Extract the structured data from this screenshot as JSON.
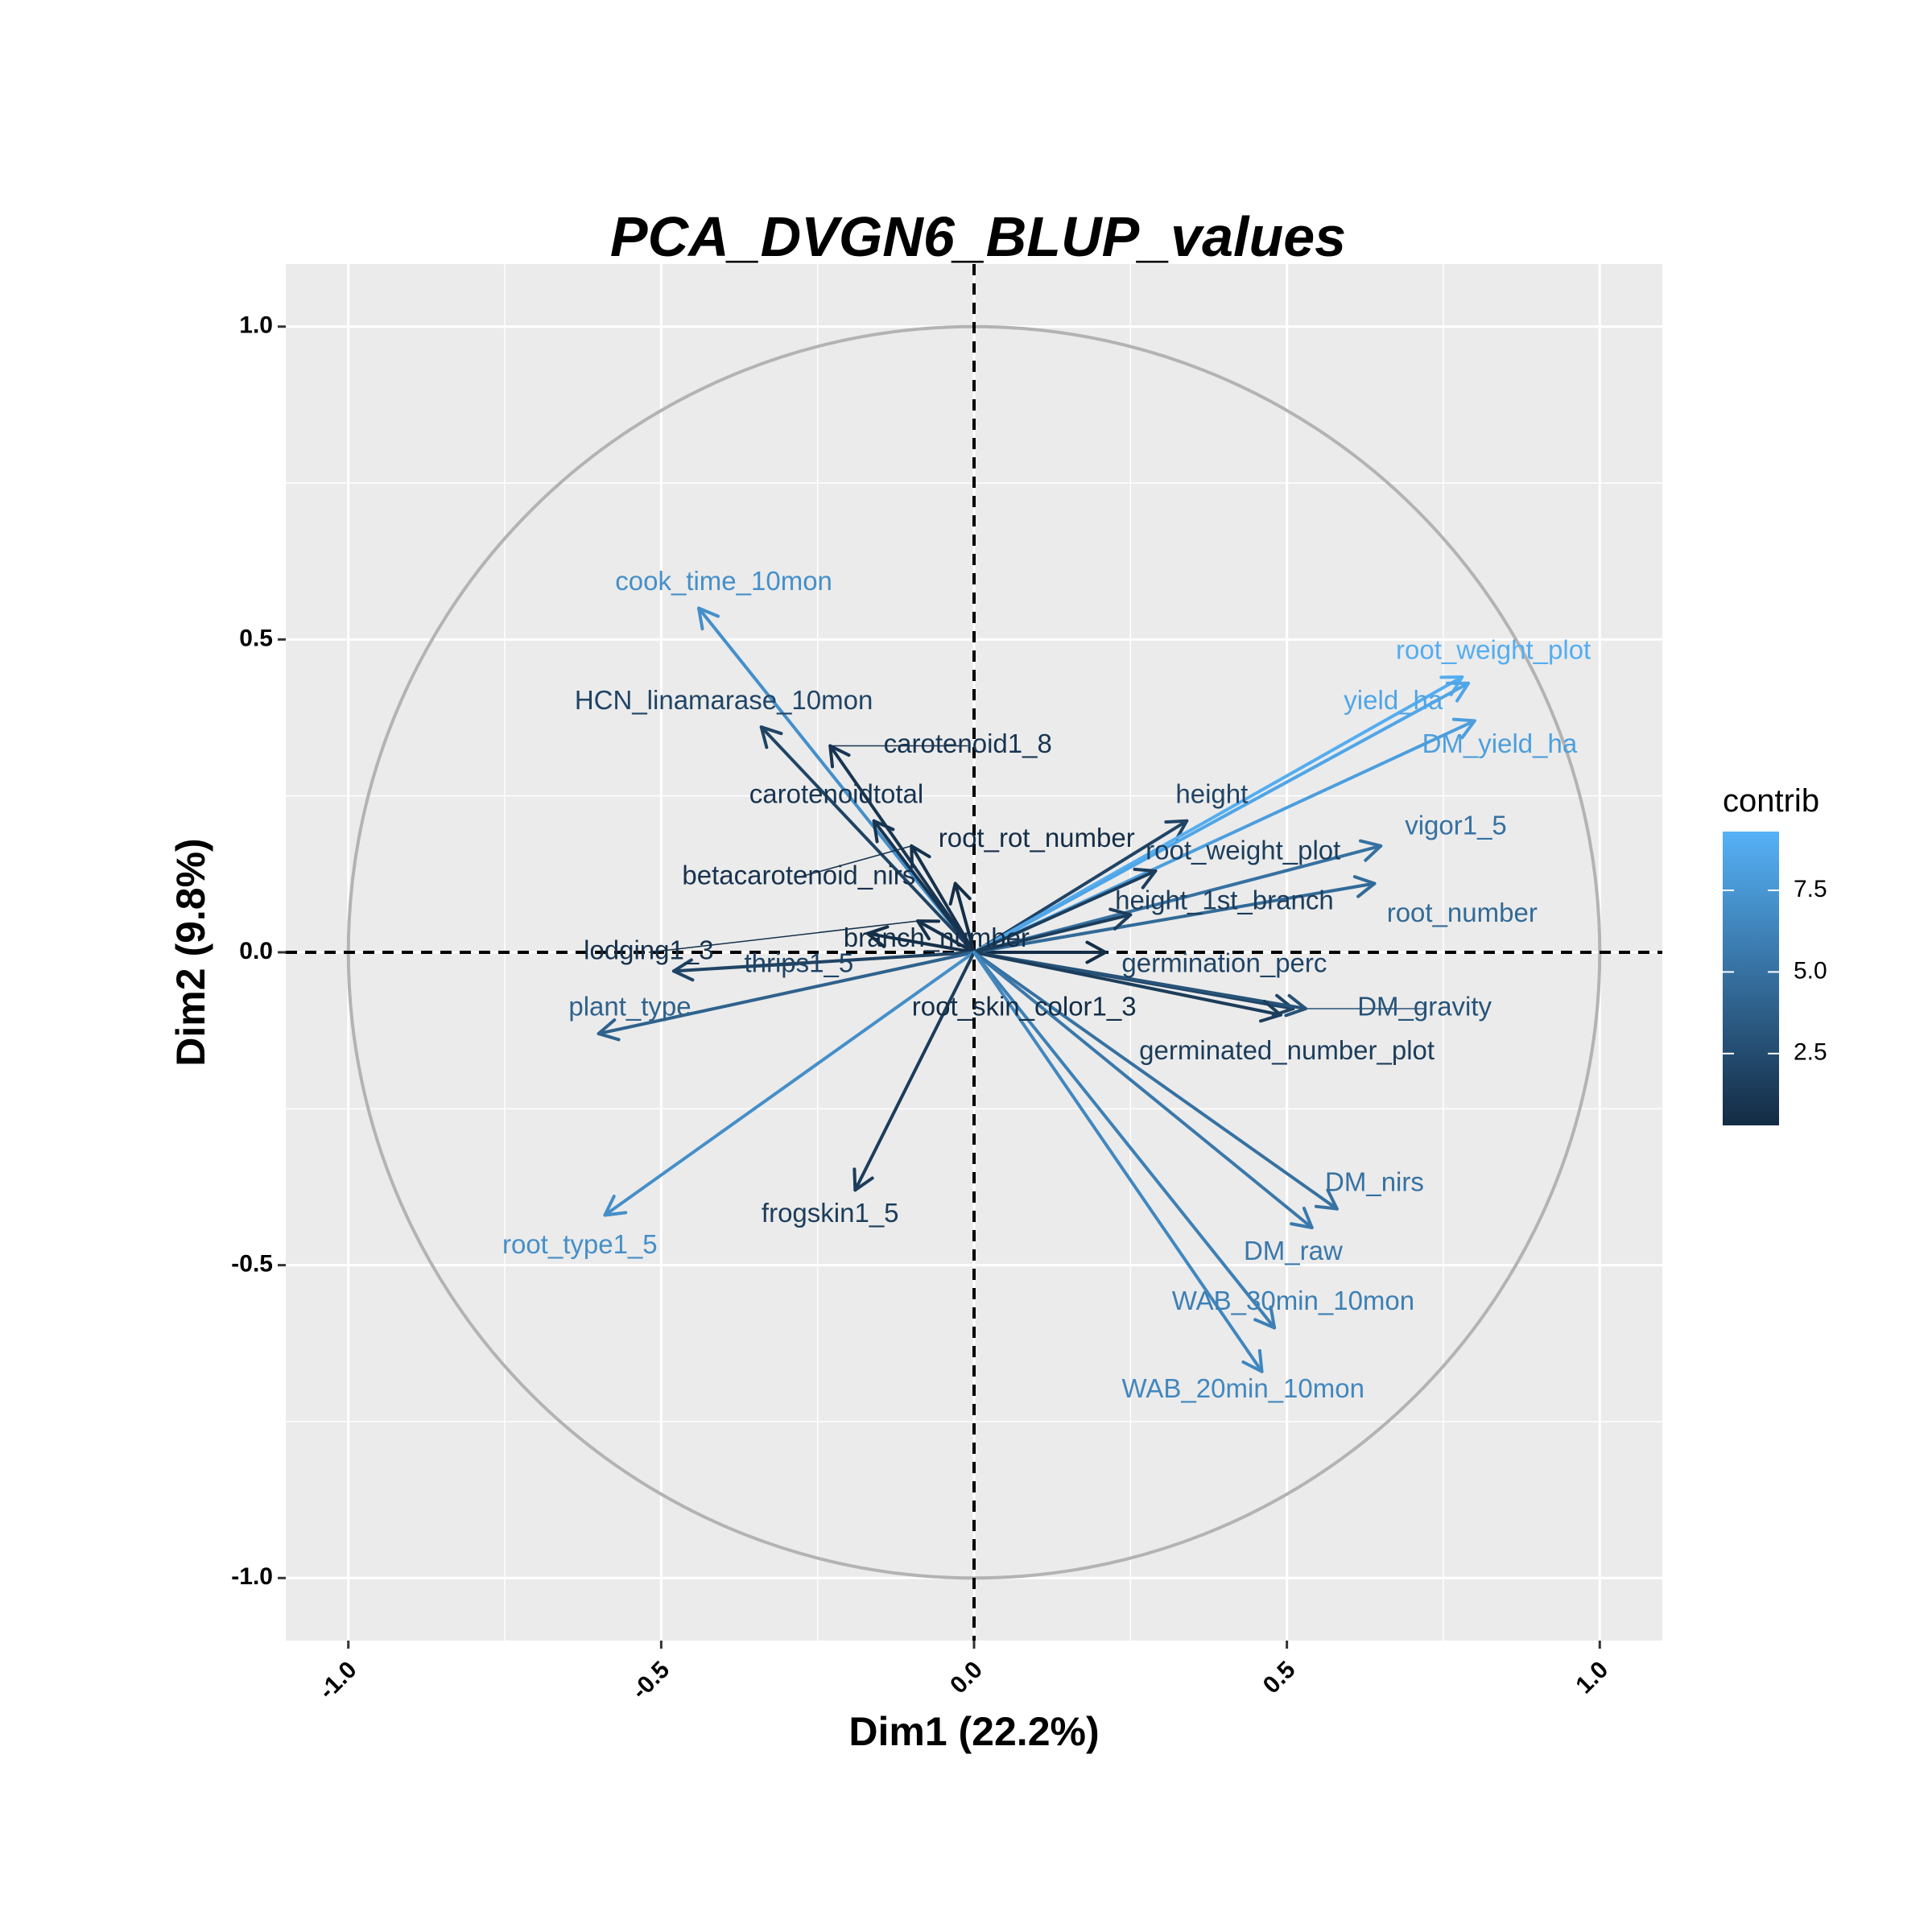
{
  "chart_data": {
    "type": "scatter",
    "subtype": "pca-variable-correlation-circle",
    "title": "PCA_DVGN6_BLUP_values",
    "xlabel": "Dim1 (22.2%)",
    "ylabel": "Dim2 (9.8%)",
    "xlim": [
      -1.1,
      1.1
    ],
    "ylim": [
      -1.1,
      1.1
    ],
    "xticks": [
      -1.0,
      -0.5,
      0.0,
      0.5,
      1.0
    ],
    "yticks": [
      -1.0,
      -0.5,
      0.0,
      0.5,
      1.0
    ],
    "xtick_labels": [
      "-1.0",
      "-0.5",
      "0.0",
      "0.5",
      "1.0"
    ],
    "ytick_labels": [
      "-1.0",
      "-0.5",
      "0.0",
      "0.5",
      "1.0"
    ],
    "grid": true,
    "unit_circle": true,
    "reference_lines": [
      "x=0",
      "y=0"
    ],
    "legend": {
      "title": "contrib",
      "placement": "right",
      "min": 0.3,
      "max": 9.3,
      "breaks": [
        2.5,
        5.0,
        7.5
      ],
      "break_labels": [
        "2.5",
        "5.0",
        "7.5"
      ],
      "color_low": "#132B43",
      "color_high": "#56B1F7"
    },
    "variables": [
      {
        "name": "cook_time_10mon",
        "x": -0.44,
        "y": 0.55,
        "contrib": 7.0,
        "label_x": -0.4,
        "label_y": 0.59
      },
      {
        "name": "HCN_linamarase_10mon",
        "x": -0.34,
        "y": 0.36,
        "contrib": 2.0,
        "label_x": -0.4,
        "label_y": 0.4
      },
      {
        "name": "carotenoid1_8",
        "x": -0.23,
        "y": 0.33,
        "contrib": 1.0,
        "label_x": -0.01,
        "label_y": 0.33
      },
      {
        "name": "carotenoidtotal",
        "x": -0.16,
        "y": 0.21,
        "contrib": 1.0,
        "label_x": -0.22,
        "label_y": 0.25
      },
      {
        "name": "betacarotenoid_nirs",
        "x": -0.1,
        "y": 0.17,
        "contrib": 0.8,
        "label_x": -0.28,
        "label_y": 0.12
      },
      {
        "name": "root_rot_number",
        "x": -0.03,
        "y": 0.11,
        "contrib": 0.5,
        "label_x": 0.1,
        "label_y": 0.18
      },
      {
        "name": "branch_number",
        "x": -0.17,
        "y": 0.03,
        "contrib": 0.6,
        "label_x": -0.06,
        "label_y": 0.02
      },
      {
        "name": "lodging1_3",
        "x": -0.09,
        "y": 0.05,
        "contrib": 0.7,
        "label_x": -0.52,
        "label_y": 0.0
      },
      {
        "name": "thrips1_5",
        "x": -0.48,
        "y": -0.03,
        "contrib": 2.0,
        "label_x": -0.28,
        "label_y": -0.02
      },
      {
        "name": "plant_type",
        "x": -0.6,
        "y": -0.13,
        "contrib": 4.0,
        "label_x": -0.55,
        "label_y": -0.09
      },
      {
        "name": "root_type1_5",
        "x": -0.59,
        "y": -0.42,
        "contrib": 7.0,
        "label_x": -0.63,
        "label_y": -0.47
      },
      {
        "name": "frogskin1_5",
        "x": -0.19,
        "y": -0.38,
        "contrib": 1.5,
        "label_x": -0.23,
        "label_y": -0.42
      },
      {
        "name": "root_skin_color1_3",
        "x": 0.21,
        "y": 0.0,
        "contrib": 0.5,
        "label_x": 0.08,
        "label_y": -0.09
      },
      {
        "name": "height",
        "x": 0.34,
        "y": 0.21,
        "contrib": 2.0,
        "label_x": 0.38,
        "label_y": 0.25
      },
      {
        "name": "root_weight_plot",
        "x": 0.78,
        "y": 0.44,
        "contrib": 9.0,
        "label_x": 0.83,
        "label_y": 0.48
      },
      {
        "name": "yield_ha",
        "x": 0.79,
        "y": 0.43,
        "contrib": 8.5,
        "label_x": 0.67,
        "label_y": 0.4
      },
      {
        "name": "DM_yield_ha",
        "x": 0.8,
        "y": 0.37,
        "contrib": 8.0,
        "label_x": 0.84,
        "label_y": 0.33
      },
      {
        "name": "vigor1_5",
        "x": 0.65,
        "y": 0.17,
        "contrib": 5.0,
        "label_x": 0.77,
        "label_y": 0.2
      },
      {
        "name": "root_number",
        "x": 0.64,
        "y": 0.11,
        "contrib": 4.5,
        "label_x": 0.78,
        "label_y": 0.06
      },
      {
        "name": "root_weight_plot",
        "x": 0.29,
        "y": 0.13,
        "contrib": 1.5,
        "label_x": 0.43,
        "label_y": 0.16
      },
      {
        "name": "height_1st_branch",
        "x": 0.25,
        "y": 0.06,
        "contrib": 1.5,
        "label_x": 0.4,
        "label_y": 0.08
      },
      {
        "name": "germination_perc",
        "x": 0.51,
        "y": -0.09,
        "contrib": 2.0,
        "label_x": 0.4,
        "label_y": -0.02
      },
      {
        "name": "DM_gravity",
        "x": 0.53,
        "y": -0.09,
        "contrib": 3.0,
        "label_x": 0.72,
        "label_y": -0.09
      },
      {
        "name": "germinated_number_plot",
        "x": 0.49,
        "y": -0.1,
        "contrib": 1.5,
        "label_x": 0.5,
        "label_y": -0.16
      },
      {
        "name": "DM_nirs",
        "x": 0.58,
        "y": -0.41,
        "contrib": 5.0,
        "label_x": 0.64,
        "label_y": -0.37
      },
      {
        "name": "DM_raw",
        "x": 0.54,
        "y": -0.44,
        "contrib": 5.5,
        "label_x": 0.51,
        "label_y": -0.48
      },
      {
        "name": "WAB_30min_10mon",
        "x": 0.48,
        "y": -0.6,
        "contrib": 6.0,
        "label_x": 0.51,
        "label_y": -0.56
      },
      {
        "name": "WAB_20min_10mon",
        "x": 0.46,
        "y": -0.67,
        "contrib": 6.5,
        "label_x": 0.43,
        "label_y": -0.7
      }
    ]
  }
}
